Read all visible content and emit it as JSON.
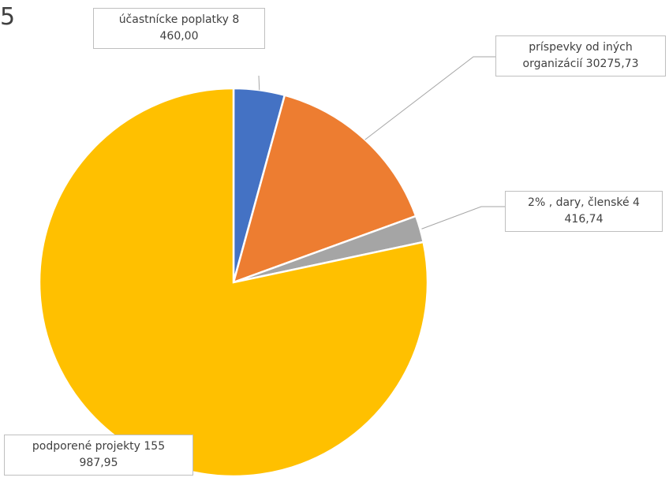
{
  "title_fragment": "5",
  "chart_data": {
    "type": "pie",
    "series": [
      {
        "values": [
          8460.0,
          30275.73,
          4416.74,
          155987.95
        ]
      }
    ],
    "slices": [
      {
        "label_line1": "účastnícke poplatky 8",
        "label_line2": "460,00",
        "value": 8460.0,
        "color": "#4472C4"
      },
      {
        "label_line1": "príspevky od iných",
        "label_line2": "organizácií 30275,73",
        "value": 30275.73,
        "color": "#ED7D31"
      },
      {
        "label_line1": "2% , dary, členské  4",
        "label_line2": "416,74",
        "value": 4416.74,
        "color": "#A5A5A5"
      },
      {
        "label_line1": "podporené projekty 155",
        "label_line2": "987,95",
        "value": 155987.95,
        "color": "#FFC000"
      }
    ],
    "leader_color": "#a6a6a6"
  }
}
